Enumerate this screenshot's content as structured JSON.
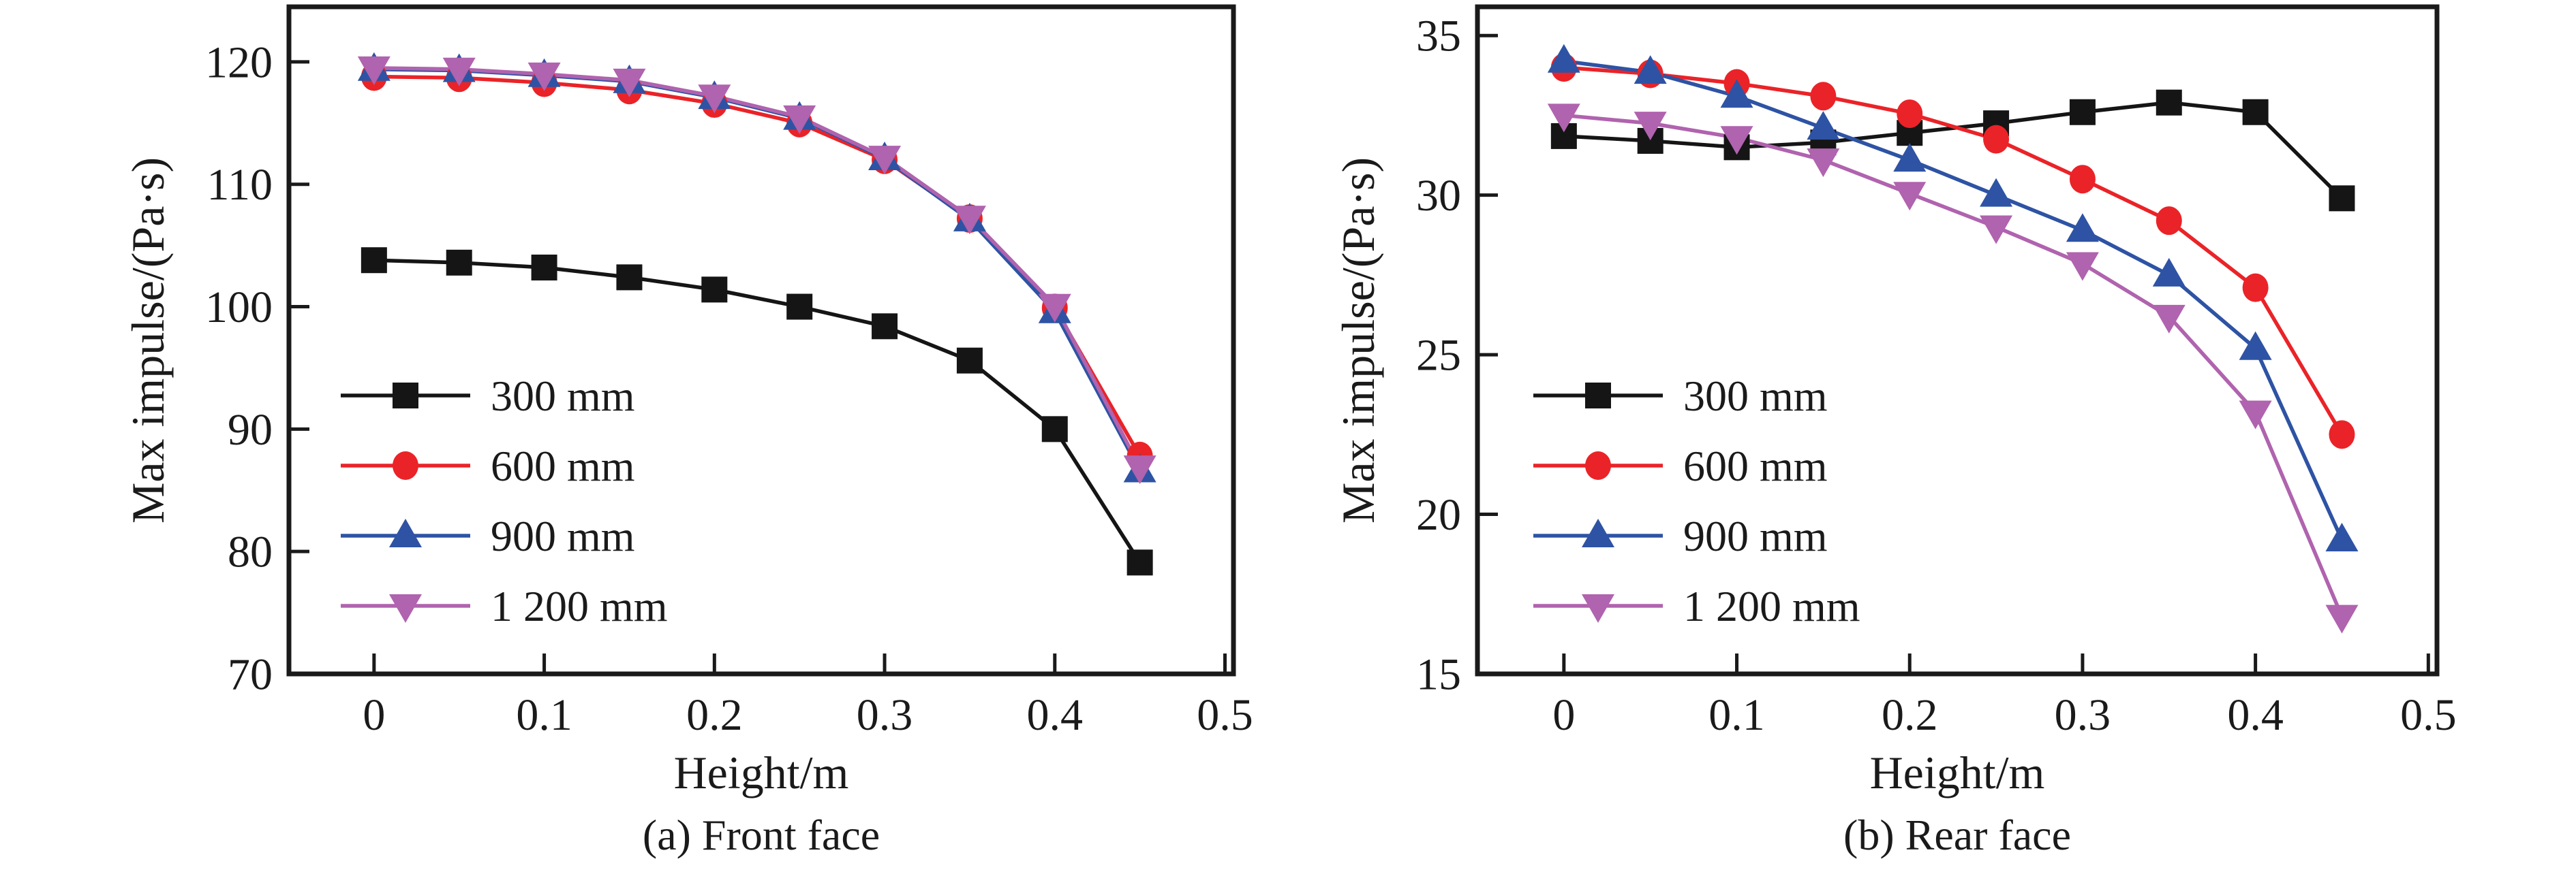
{
  "figure": {
    "background": "#ffffff",
    "ink_color": "#1a1a1a"
  },
  "chart_data": [
    {
      "id": "front-face",
      "type": "line",
      "caption": "(a) Front face",
      "xlabel": "Height/m",
      "ylabel": "Max impulse/(Pa·s)",
      "xlim": [
        -0.05,
        0.505
      ],
      "ylim": [
        70,
        124.5
      ],
      "xticks": [
        0,
        0.1,
        0.2,
        0.3,
        0.4,
        0.5
      ],
      "xtick_labels": [
        "0",
        "0.1",
        "0.2",
        "0.3",
        "0.4",
        "0.5"
      ],
      "yticks": [
        70,
        80,
        90,
        100,
        110,
        120
      ],
      "ytick_labels": [
        "70",
        "80",
        "90",
        "100",
        "110",
        "120"
      ],
      "grid": false,
      "legend_position": "lower-left",
      "x": [
        0,
        0.05,
        0.1,
        0.15,
        0.2,
        0.25,
        0.3,
        0.35,
        0.4,
        0.45
      ],
      "series": [
        {
          "name": "300 mm",
          "color": "#151515",
          "marker": "square",
          "values": [
            103.8,
            103.6,
            103.2,
            102.4,
            101.4,
            100.0,
            98.4,
            95.6,
            90.0,
            79.1
          ]
        },
        {
          "name": "600 mm",
          "color": "#ea2328",
          "marker": "circle",
          "values": [
            118.8,
            118.7,
            118.3,
            117.7,
            116.6,
            115.0,
            112.0,
            107.2,
            99.9,
            87.8
          ]
        },
        {
          "name": "900 mm",
          "color": "#2e53a4",
          "marker": "triangle-up",
          "values": [
            119.4,
            119.3,
            118.9,
            118.4,
            117.1,
            115.4,
            112.1,
            107.1,
            99.6,
            86.6
          ]
        },
        {
          "name": "1 200 mm",
          "color": "#b063ae",
          "marker": "triangle-down",
          "values": [
            119.5,
            119.4,
            119.0,
            118.5,
            117.2,
            115.5,
            112.2,
            107.3,
            100.1,
            86.9
          ]
        }
      ]
    },
    {
      "id": "rear-face",
      "type": "line",
      "caption": "(b) Rear face",
      "xlabel": "Height/m",
      "ylabel": "Max impulse/(Pa·s)",
      "xlim": [
        -0.05,
        0.505
      ],
      "ylim": [
        15,
        35.9
      ],
      "xticks": [
        0,
        0.1,
        0.2,
        0.3,
        0.4,
        0.5
      ],
      "xtick_labels": [
        "0",
        "0.1",
        "0.2",
        "0.3",
        "0.4",
        "0.5"
      ],
      "yticks": [
        15,
        20,
        25,
        30,
        35
      ],
      "ytick_labels": [
        "15",
        "20",
        "25",
        "30",
        "35"
      ],
      "grid": false,
      "legend_position": "lower-left",
      "x": [
        0,
        0.05,
        0.1,
        0.15,
        0.2,
        0.25,
        0.3,
        0.35,
        0.4,
        0.45
      ],
      "series": [
        {
          "name": "300 mm",
          "color": "#151515",
          "marker": "square",
          "values": [
            31.85,
            31.7,
            31.5,
            31.65,
            31.95,
            32.25,
            32.6,
            32.9,
            32.6,
            29.9
          ]
        },
        {
          "name": "600 mm",
          "color": "#ea2328",
          "marker": "circle",
          "values": [
            34.0,
            33.8,
            33.5,
            33.1,
            32.55,
            31.75,
            30.5,
            29.2,
            27.1,
            22.5
          ]
        },
        {
          "name": "900 mm",
          "color": "#2e53a4",
          "marker": "triangle-up",
          "values": [
            34.2,
            33.85,
            33.1,
            32.1,
            31.1,
            30.0,
            28.9,
            27.5,
            25.2,
            19.2
          ]
        },
        {
          "name": "1 200 mm",
          "color": "#b063ae",
          "marker": "triangle-down",
          "values": [
            32.5,
            32.25,
            31.8,
            31.1,
            30.05,
            29.0,
            27.85,
            26.2,
            23.2,
            16.8
          ]
        }
      ]
    }
  ]
}
